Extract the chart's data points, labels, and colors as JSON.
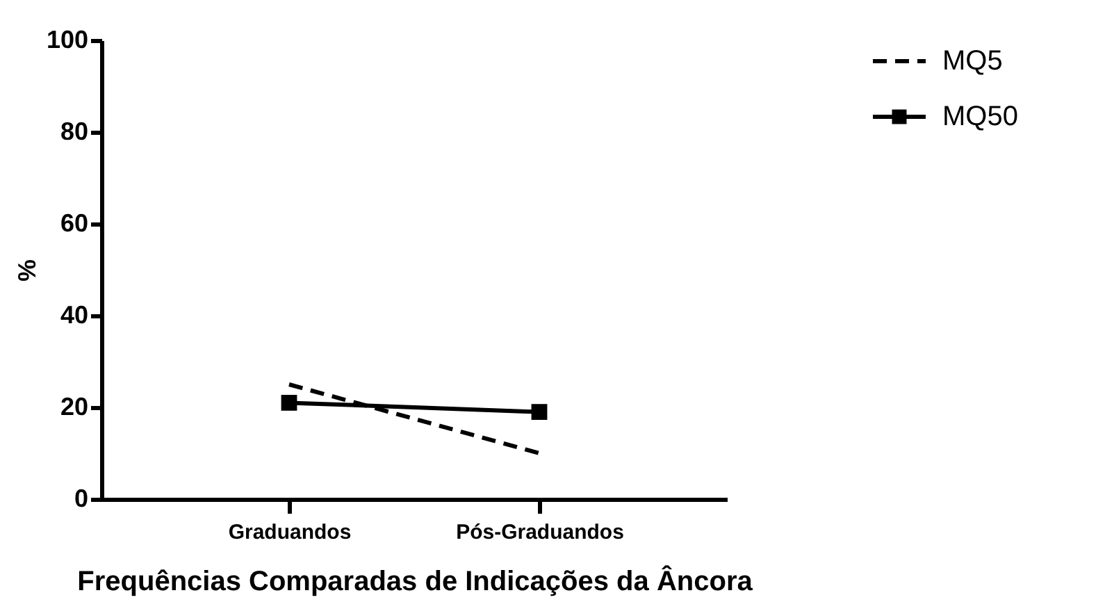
{
  "chart_data": {
    "type": "line",
    "xlabel": "Frequências Comparadas de Indicações da Âncora",
    "ylabel": "%",
    "categories": [
      "Graduandos",
      "Pós-Graduandos"
    ],
    "series": [
      {
        "name": "MQ5",
        "color": "#000000",
        "values": [
          25,
          10
        ],
        "line_style": "dashed",
        "marker": "none"
      },
      {
        "name": "MQ50",
        "color": "#000000",
        "values": [
          21,
          19
        ],
        "line_style": "solid",
        "marker": "square"
      }
    ],
    "ylim": [
      0,
      100
    ],
    "yticks": [
      0,
      20,
      40,
      60,
      80,
      100
    ],
    "grid": false,
    "legend": "top right"
  }
}
